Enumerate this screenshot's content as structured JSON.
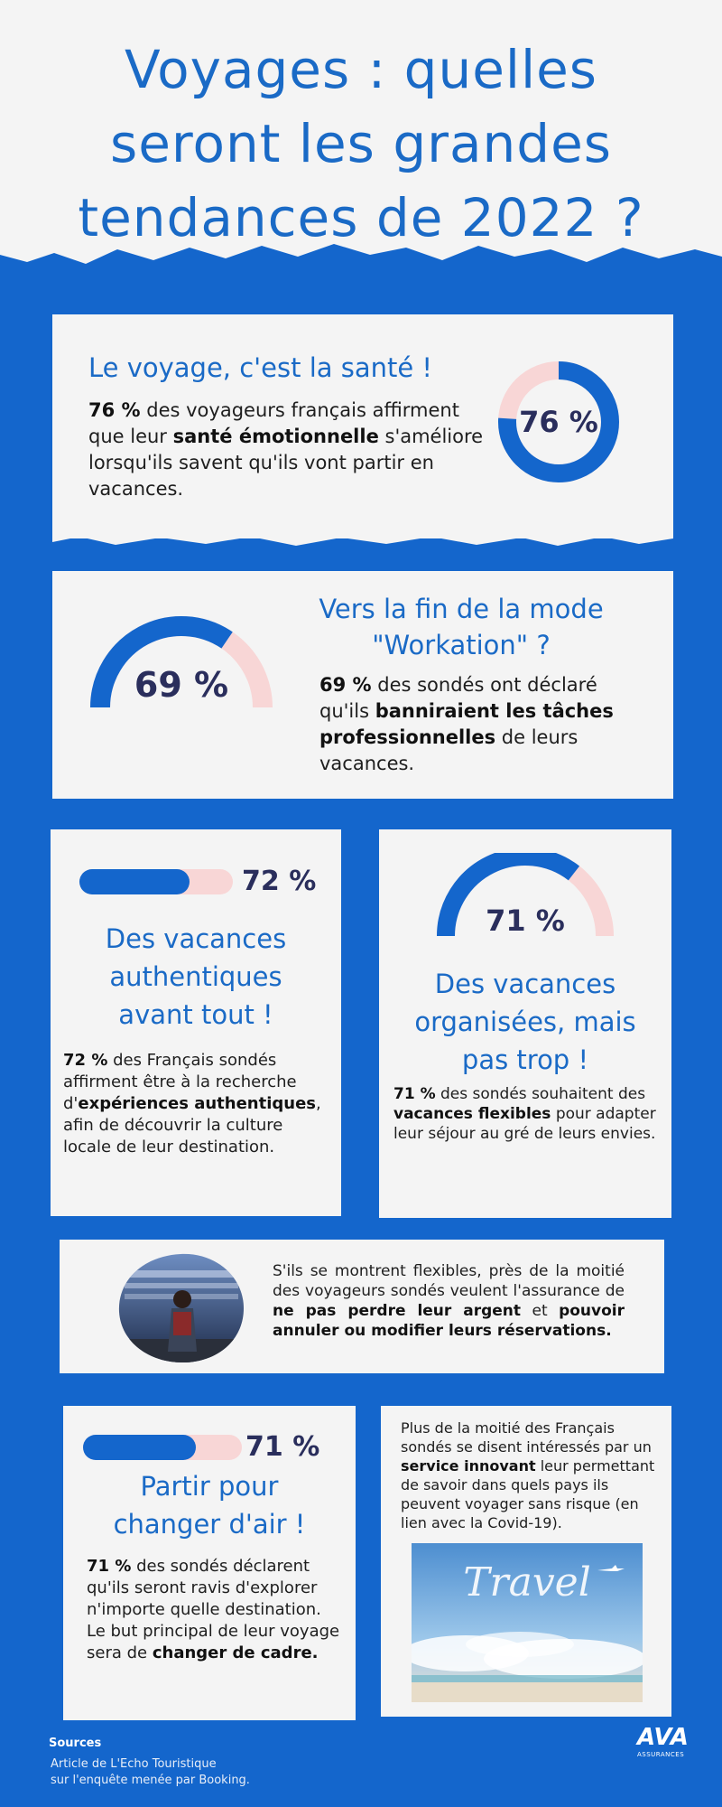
{
  "header": {
    "title_line1": "Voyages : quelles",
    "title_line2": "seront les grandes",
    "title_line3": "tendances de 2022 ?"
  },
  "sante": {
    "heading": "Le voyage, c'est la santé !",
    "pct_label": "76 %",
    "value": 76,
    "text_a": "76 %",
    "text_b": " des voyageurs français affirment que leur ",
    "text_c": "santé émotionnelle",
    "text_d": " s'améliore lorsqu'ils savent qu'ils vont partir en vacances."
  },
  "workation": {
    "heading": "Vers la fin de la mode \"Workation\" ?",
    "pct_label": "69 %",
    "value": 69,
    "text_a": "69 %",
    "text_b": " des sondés ont déclaré qu'ils ",
    "text_c": "banniraient les tâches professionnelles",
    "text_d": " de leurs vacances."
  },
  "authentiques": {
    "pct_label": "72 %",
    "value": 72,
    "heading": "Des vacances authentiques avant tout !",
    "text_a": "72 %",
    "text_b": " des Français sondés affirment être à la recherche d'",
    "text_c": "expériences authentiques",
    "text_d": ", afin de découvrir la culture locale de leur destination."
  },
  "organisees": {
    "pct_label": "71 %",
    "value": 71,
    "heading": "Des vacances organisées, mais pas trop !",
    "text_a": "71 %",
    "text_b": " des sondés souhaitent des ",
    "text_c": "vacances flexibles",
    "text_d": " pour adapter leur séjour au gré de leurs envies."
  },
  "flexibles": {
    "text_a": "S'ils se montrent flexibles, près de la moitié des voyageurs sondés veulent l'assurance de ",
    "text_b": "ne pas perdre leur argent",
    "text_c": " et ",
    "text_d": "pouvoir annuler ou modifier leurs réservations."
  },
  "changer": {
    "pct_label": "71 %",
    "value": 71,
    "heading": "Partir pour changer d'air !",
    "text_a": "71 %",
    "text_b": " des sondés déclarent qu'ils seront ravis d'explorer n'importe quelle destination. Le but principal de leur voyage sera de ",
    "text_c": "changer de cadre."
  },
  "service": {
    "text_a": "Plus de la moitié des Français sondés se disent intéressés par un ",
    "text_b": "service innovant",
    "text_c": " leur permettant de savoir dans quels pays ils peuvent voyager sans risque (en lien avec la Covid-19).",
    "image_text": "Travel"
  },
  "footer": {
    "sources_title": "Sources",
    "source_line1": "Article de L'Echo Touristique",
    "source_line2": "sur l'enquête menée par Booking.",
    "logo_main": "AVA",
    "logo_sub": "ASSURANCES"
  },
  "colors": {
    "blue": "#1466cc",
    "title_blue": "#1a6ac6",
    "pink": "#f8d6d6",
    "dark_pct": "#2a2e5c",
    "paper": "#f4f4f4"
  },
  "icons": {
    "travel_photo": "airport-traveler-image",
    "sky_photo": "sky-travel-image",
    "brand": "ava-logo"
  }
}
